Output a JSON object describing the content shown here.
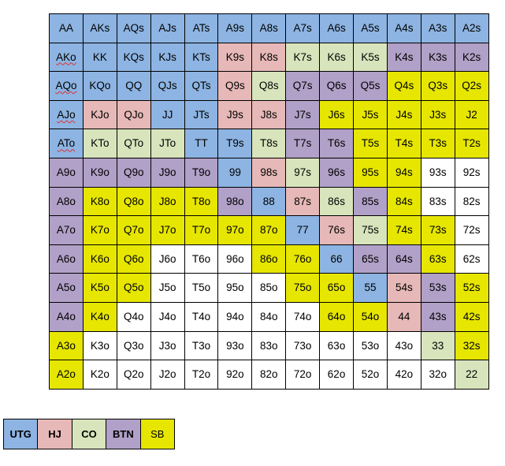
{
  "colors": {
    "UTG": "#8db4e2",
    "HJ": "#e6b8b7",
    "CO": "#d8e4bc",
    "BTN": "#b1a0c7",
    "SB": "#e6e600",
    "W": "#ffffff"
  },
  "grid": {
    "rows": [
      [
        "AA",
        "AKs",
        "AQs",
        "AJs",
        "ATs",
        "A9s",
        "A8s",
        "A7s",
        "A6s",
        "A5s",
        "A4s",
        "A3s",
        "A2s"
      ],
      [
        "AKo",
        "KK",
        "KQs",
        "KJs",
        "KTs",
        "K9s",
        "K8s",
        "K7s",
        "K6s",
        "K5s",
        "K4s",
        "K3s",
        "K2s"
      ],
      [
        "AQo",
        "KQo",
        "QQ",
        "QJs",
        "QTs",
        "Q9s",
        "Q8s",
        "Q7s",
        "Q6s",
        "Q5s",
        "Q4s",
        "Q3s",
        "Q2s"
      ],
      [
        "AJo",
        "KJo",
        "QJo",
        "JJ",
        "JTs",
        "J9s",
        "J8s",
        "J7s",
        "J6s",
        "J5s",
        "J4s",
        "J3s",
        "J2"
      ],
      [
        "ATo",
        "KTo",
        "QTo",
        "JTo",
        "TT",
        "T9s",
        "T8s",
        "T7s",
        "T6s",
        "T5s",
        "T4s",
        "T3s",
        "T2s"
      ],
      [
        "A9o",
        "K9o",
        "Q9o",
        "J9o",
        "T9o",
        "99",
        "98s",
        "97s",
        "96s",
        "95s",
        "94s",
        "93s",
        "92s"
      ],
      [
        "A8o",
        "K8o",
        "Q8o",
        "J8o",
        "T8o",
        "98o",
        "88",
        "87s",
        "86s",
        "85s",
        "84s",
        "83s",
        "82s"
      ],
      [
        "A7o",
        "K7o",
        "Q7o",
        "J7o",
        "T7o",
        "97o",
        "87o",
        "77",
        "76s",
        "75s",
        "74s",
        "73s",
        "72s"
      ],
      [
        "A6o",
        "K6o",
        "Q6o",
        "J6o",
        "T6o",
        "96o",
        "86o",
        "76o",
        "66",
        "65s",
        "64s",
        "63s",
        "62s"
      ],
      [
        "A5o",
        "K5o",
        "Q5o",
        "J5o",
        "T5o",
        "95o",
        "85o",
        "75o",
        "65o",
        "55",
        "54s",
        "53s",
        "52s"
      ],
      [
        "A4o",
        "K4o",
        "Q4o",
        "J4o",
        "T4o",
        "94o",
        "84o",
        "74o",
        "64o",
        "54o",
        "44",
        "43s",
        "42s"
      ],
      [
        "A3o",
        "K3o",
        "Q3o",
        "J3o",
        "T3o",
        "93o",
        "83o",
        "73o",
        "63o",
        "53o",
        "43o",
        "33",
        "32s"
      ],
      [
        "A2o",
        "K2o",
        "Q2o",
        "J2o",
        "T2o",
        "92o",
        "82o",
        "72o",
        "62o",
        "52o",
        "42o",
        "32o",
        "22"
      ]
    ],
    "positions": [
      [
        "UTG",
        "UTG",
        "UTG",
        "UTG",
        "UTG",
        "UTG",
        "UTG",
        "UTG",
        "UTG",
        "UTG",
        "UTG",
        "UTG",
        "UTG"
      ],
      [
        "UTG",
        "UTG",
        "UTG",
        "UTG",
        "UTG",
        "HJ",
        "HJ",
        "CO",
        "CO",
        "CO",
        "BTN",
        "BTN",
        "BTN"
      ],
      [
        "UTG",
        "UTG",
        "UTG",
        "UTG",
        "UTG",
        "HJ",
        "CO",
        "BTN",
        "BTN",
        "BTN",
        "SB",
        "SB",
        "SB"
      ],
      [
        "UTG",
        "HJ",
        "HJ",
        "UTG",
        "UTG",
        "HJ",
        "HJ",
        "BTN",
        "SB",
        "SB",
        "SB",
        "SB",
        "SB"
      ],
      [
        "UTG",
        "CO",
        "CO",
        "CO",
        "UTG",
        "UTG",
        "CO",
        "BTN",
        "BTN",
        "SB",
        "SB",
        "SB",
        "SB"
      ],
      [
        "BTN",
        "BTN",
        "BTN",
        "BTN",
        "BTN",
        "UTG",
        "HJ",
        "CO",
        "BTN",
        "SB",
        "SB",
        "W",
        "W"
      ],
      [
        "BTN",
        "SB",
        "SB",
        "SB",
        "SB",
        "BTN",
        "UTG",
        "HJ",
        "CO",
        "BTN",
        "SB",
        "W",
        "W"
      ],
      [
        "BTN",
        "SB",
        "SB",
        "SB",
        "SB",
        "SB",
        "SB",
        "UTG",
        "HJ",
        "CO",
        "SB",
        "SB",
        "W"
      ],
      [
        "BTN",
        "SB",
        "SB",
        "W",
        "W",
        "W",
        "SB",
        "SB",
        "UTG",
        "BTN",
        "BTN",
        "SB",
        "W"
      ],
      [
        "BTN",
        "SB",
        "SB",
        "W",
        "W",
        "W",
        "W",
        "SB",
        "SB",
        "UTG",
        "HJ",
        "BTN",
        "SB"
      ],
      [
        "BTN",
        "SB",
        "W",
        "W",
        "W",
        "W",
        "W",
        "W",
        "SB",
        "SB",
        "HJ",
        "BTN",
        "SB"
      ],
      [
        "SB",
        "W",
        "W",
        "W",
        "W",
        "W",
        "W",
        "W",
        "W",
        "W",
        "W",
        "CO",
        "SB"
      ],
      [
        "SB",
        "W",
        "W",
        "W",
        "W",
        "W",
        "W",
        "W",
        "W",
        "W",
        "W",
        "W",
        "CO"
      ]
    ],
    "underlined": [
      "AKo",
      "AQo",
      "AJo",
      "ATo"
    ]
  },
  "legend": [
    {
      "label": "UTG",
      "pos": "UTG",
      "bold": true
    },
    {
      "label": "HJ",
      "pos": "HJ",
      "bold": true
    },
    {
      "label": "CO",
      "pos": "CO",
      "bold": true
    },
    {
      "label": "BTN",
      "pos": "BTN",
      "bold": true
    },
    {
      "label": "SB",
      "pos": "SB",
      "bold": false
    }
  ]
}
